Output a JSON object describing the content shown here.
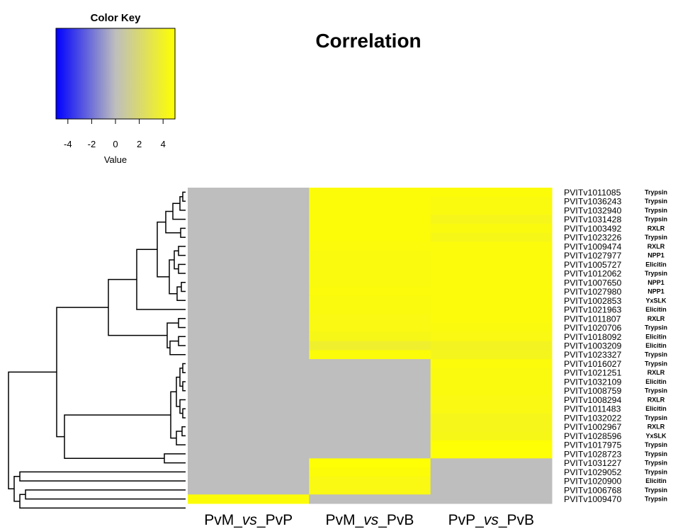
{
  "chart_data": {
    "type": "heatmap",
    "title": "Correlation",
    "color_key": {
      "title": "Color Key",
      "xlabel": "Value",
      "range": [
        -5,
        5
      ],
      "ticks": [
        -4,
        -2,
        0,
        2,
        4
      ],
      "colors": {
        "low": "#0000ff",
        "mid": "#bebebe",
        "high": "#ffff00"
      },
      "na_color": "#bebebe"
    },
    "columns": [
      {
        "pre": "PvM_",
        "mid": "vs",
        "post": "_PvP"
      },
      {
        "pre": "PvM_",
        "mid": "vs",
        "post": "_PvB"
      },
      {
        "pre": "PvP_",
        "mid": "vs",
        "post": "_PvB"
      }
    ],
    "rows": [
      {
        "gene": "PVITv1011085",
        "family": "Trypsin",
        "values": [
          null,
          4.8,
          4.8
        ]
      },
      {
        "gene": "PVITv1036243",
        "family": "Trypsin",
        "values": [
          null,
          4.8,
          4.6
        ]
      },
      {
        "gene": "PVITv1032940",
        "family": "Trypsin",
        "values": [
          null,
          4.8,
          4.6
        ]
      },
      {
        "gene": "PVITv1031428",
        "family": "Trypsin",
        "values": [
          null,
          4.8,
          4.3
        ]
      },
      {
        "gene": "PVITv1003492",
        "family": "RXLR",
        "values": [
          null,
          4.8,
          4.6
        ]
      },
      {
        "gene": "PVITv1023226",
        "family": "Trypsin",
        "values": [
          null,
          4.8,
          4.4
        ]
      },
      {
        "gene": "PVITv1009474",
        "family": "RXLR",
        "values": [
          null,
          4.7,
          4.7
        ]
      },
      {
        "gene": "PVITv1027977",
        "family": "NPP1",
        "values": [
          null,
          4.6,
          4.7
        ]
      },
      {
        "gene": "PVITv1005727",
        "family": "Elicitin",
        "values": [
          null,
          4.6,
          4.7
        ]
      },
      {
        "gene": "PVITv1012062",
        "family": "Trypsin",
        "values": [
          null,
          4.6,
          4.7
        ]
      },
      {
        "gene": "PVITv1007650",
        "family": "NPP1",
        "values": [
          null,
          4.6,
          4.7
        ]
      },
      {
        "gene": "PVITv1027980",
        "family": "NPP1",
        "values": [
          null,
          4.7,
          4.7
        ]
      },
      {
        "gene": "PVITv1002853",
        "family": "YxSLK",
        "values": [
          null,
          4.6,
          4.7
        ]
      },
      {
        "gene": "PVITv1021963",
        "family": "Elicitin",
        "values": [
          null,
          4.6,
          4.7
        ]
      },
      {
        "gene": "PVITv1011807",
        "family": "RXLR",
        "values": [
          null,
          4.5,
          4.7
        ]
      },
      {
        "gene": "PVITv1020706",
        "family": "Trypsin",
        "values": [
          null,
          4.5,
          4.6
        ]
      },
      {
        "gene": "PVITv1018092",
        "family": "Elicitin",
        "values": [
          null,
          4.4,
          4.5
        ]
      },
      {
        "gene": "PVITv1003209",
        "family": "Elicitin",
        "values": [
          null,
          3.8,
          4.1
        ]
      },
      {
        "gene": "PVITv1023327",
        "family": "Trypsin",
        "values": [
          null,
          4.8,
          4.2
        ]
      },
      {
        "gene": "PVITv1016027",
        "family": "Trypsin",
        "values": [
          null,
          null,
          4.7
        ]
      },
      {
        "gene": "PVITv1021251",
        "family": "RXLR",
        "values": [
          null,
          null,
          4.6
        ]
      },
      {
        "gene": "PVITv1032109",
        "family": "Elicitin",
        "values": [
          null,
          null,
          4.6
        ]
      },
      {
        "gene": "PVITv1008759",
        "family": "Trypsin",
        "values": [
          null,
          null,
          4.6
        ]
      },
      {
        "gene": "PVITv1008294",
        "family": "RXLR",
        "values": [
          null,
          null,
          4.5
        ]
      },
      {
        "gene": "PVITv1011483",
        "family": "Elicitin",
        "values": [
          null,
          null,
          4.5
        ]
      },
      {
        "gene": "PVITv1032022",
        "family": "Trypsin",
        "values": [
          null,
          null,
          4.3
        ]
      },
      {
        "gene": "PVITv1002967",
        "family": "RXLR",
        "values": [
          null,
          null,
          4.3
        ]
      },
      {
        "gene": "PVITv1028596",
        "family": "YxSLK",
        "values": [
          null,
          null,
          4.4
        ]
      },
      {
        "gene": "PVITv1017975",
        "family": "Trypsin",
        "values": [
          null,
          null,
          4.9
        ]
      },
      {
        "gene": "PVITv1028723",
        "family": "Trypsin",
        "values": [
          null,
          null,
          4.9
        ]
      },
      {
        "gene": "PVITv1031227",
        "family": "Trypsin",
        "values": [
          null,
          4.9,
          null
        ]
      },
      {
        "gene": "PVITv1029052",
        "family": "Trypsin",
        "values": [
          null,
          4.8,
          null
        ]
      },
      {
        "gene": "PVITv1020900",
        "family": "Elicitin",
        "values": [
          null,
          4.5,
          null
        ]
      },
      {
        "gene": "PVITv1006768",
        "family": "Trypsin",
        "values": [
          null,
          4.5,
          null
        ]
      },
      {
        "gene": "PVITv1009470",
        "family": "Trypsin",
        "values": [
          4.8,
          null,
          null
        ]
      }
    ]
  }
}
